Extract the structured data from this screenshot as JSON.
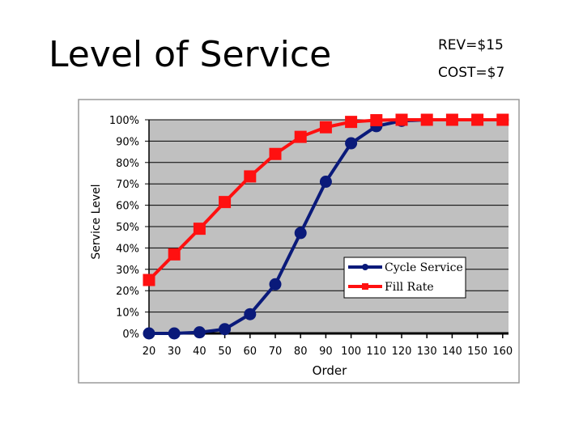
{
  "slide": {
    "title": "Level of Service",
    "rev": "REV=$15",
    "cost": "COST=$7"
  },
  "chart_data": {
    "type": "line",
    "title": "",
    "xlabel": "Order",
    "ylabel": "Service Level",
    "x": [
      20,
      30,
      40,
      50,
      60,
      70,
      80,
      90,
      100,
      110,
      120,
      130,
      140,
      150,
      160
    ],
    "x_tick_labels": [
      "20",
      "30",
      "40",
      "50",
      "60",
      "70",
      "80",
      "90",
      "100",
      "110",
      "120",
      "130",
      "140",
      "150",
      "160"
    ],
    "ylim": [
      0,
      100
    ],
    "y_ticks": [
      0,
      10,
      20,
      30,
      40,
      50,
      60,
      70,
      80,
      90,
      100
    ],
    "y_tick_labels": [
      "0%",
      "10%",
      "20%",
      "30%",
      "40%",
      "50%",
      "60%",
      "70%",
      "80%",
      "90%",
      "100%"
    ],
    "grid": "horizontal",
    "plot_background": "#c0c0c0",
    "legend_position": "lower-right",
    "series": [
      {
        "name": "Cycle Service",
        "color": "#0a1a7a",
        "marker": "circle",
        "values": [
          0,
          0,
          0.5,
          2,
          9,
          23,
          47,
          71,
          89,
          97,
          99.5,
          100,
          100,
          100,
          100
        ]
      },
      {
        "name": "Fill Rate",
        "color": "#ff1010",
        "marker": "square",
        "values": [
          25,
          37,
          49,
          61.5,
          73.5,
          84,
          92,
          96.5,
          99,
          99.8,
          100,
          100,
          100,
          100,
          100
        ]
      }
    ]
  }
}
